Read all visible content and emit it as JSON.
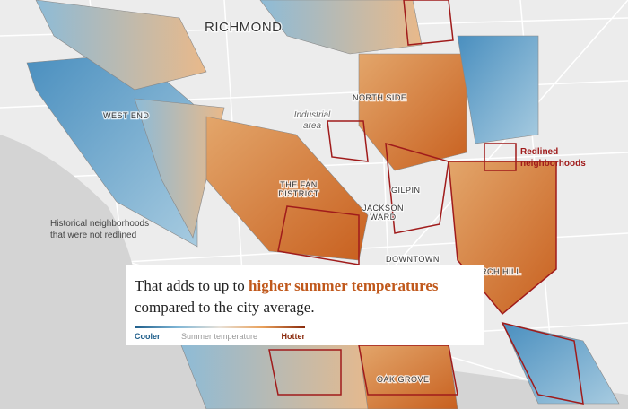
{
  "map": {
    "labels": {
      "richmond": "RICHMOND",
      "north_side": "NORTH SIDE",
      "industrial": [
        "Industrial",
        "area"
      ],
      "west_end": "WEST END",
      "fan": [
        "THE FAN",
        "DISTRICT"
      ],
      "gilpin": "GILPIN",
      "jackson_ward": [
        "JACKSON",
        "WARD"
      ],
      "downtown": "DOWNTOWN",
      "church_hill": "CHURCH HILL",
      "oak_grove": "OAK GROVE",
      "redlined": [
        "Redlined",
        "neighborhoods"
      ],
      "not_redlined": [
        "Historical neighborhoods",
        "that were not redlined"
      ]
    },
    "card": {
      "text_before": "That adds to up to ",
      "highlight": "higher summer temperatures",
      "text_after": " compared to the city average.",
      "legend": {
        "low": "Cooler",
        "title": "Summer temperature",
        "high": "Hotter"
      }
    }
  }
}
